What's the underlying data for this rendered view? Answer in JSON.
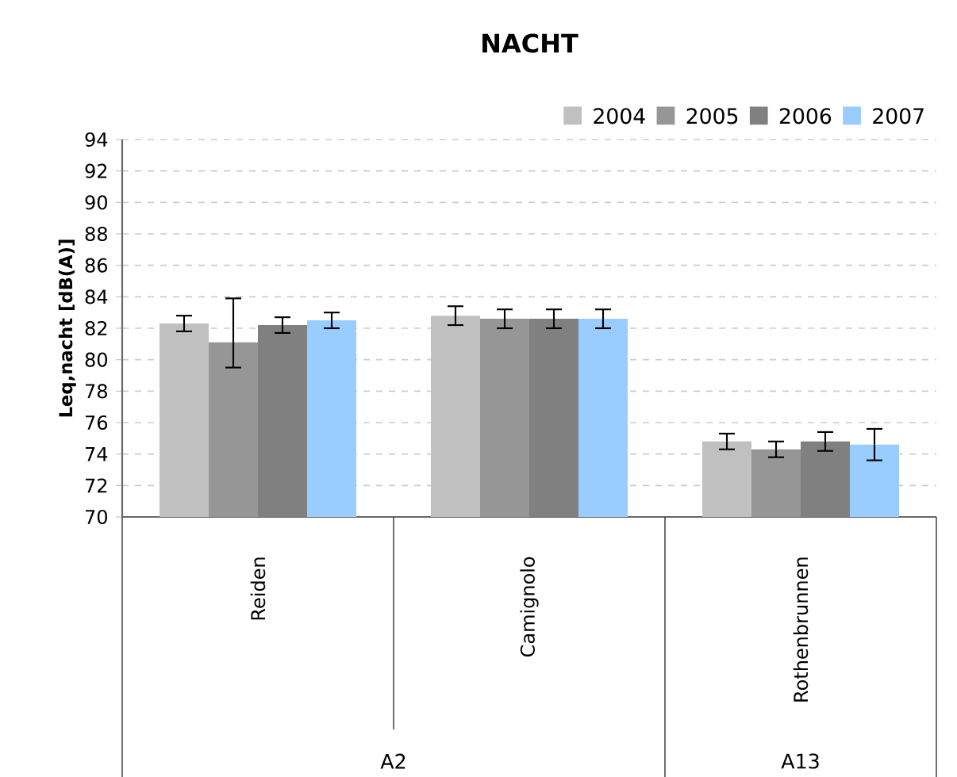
{
  "chart_data": {
    "type": "bar",
    "title": "NACHT",
    "ylabel": "Leq,nacht [dB(A)]",
    "categories": [
      "Reiden",
      "Camignolo",
      "Rothenbrunnen"
    ],
    "series": [
      {
        "name": "2004",
        "color": "#c0c0c0",
        "values": [
          82.3,
          82.8,
          74.8
        ],
        "errors": [
          0.5,
          0.6,
          0.5
        ]
      },
      {
        "name": "2005",
        "color": "#969696",
        "values": [
          81.1,
          82.6,
          74.3
        ],
        "errors": [
          [
            79.5,
            83.9
          ],
          0.6,
          0.5
        ]
      },
      {
        "name": "2006",
        "color": "#808080",
        "values": [
          82.2,
          82.6,
          74.8
        ],
        "errors": [
          0.5,
          0.6,
          0.6
        ]
      },
      {
        "name": "2007",
        "color": "#99ccff",
        "values": [
          82.5,
          82.6,
          74.6
        ],
        "errors": [
          0.5,
          0.6,
          1.0
        ]
      }
    ],
    "annotations": [
      "A2",
      "A13"
    ],
    "ylim": [
      70,
      94
    ],
    "yticks": [
      70,
      72,
      74,
      76,
      78,
      80,
      82,
      84,
      86,
      88,
      90,
      92,
      94
    ],
    "grid": "y",
    "legend": "top right"
  }
}
